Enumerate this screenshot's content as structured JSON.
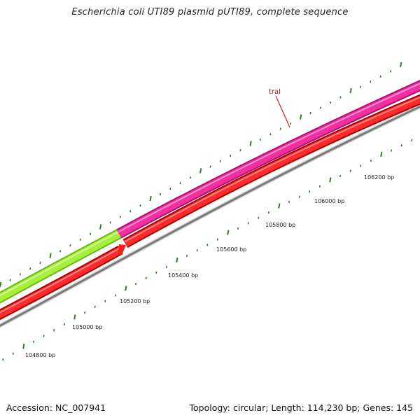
{
  "title": "Escherichia coli UTI89 plasmid pUTI89, complete sequence",
  "footer": {
    "accession": "Accession: NC_007941",
    "summary": "Topology: circular; Length: 114,230 bp; Genes: 145"
  },
  "gene_label": {
    "text": "traI",
    "color": "#cc0000"
  },
  "features": [
    {
      "name": "green-gene",
      "color": "#99ee33",
      "strand": "outer"
    },
    {
      "name": "pink-gene-traI",
      "color": "#ee2a9f",
      "strand": "outer"
    },
    {
      "name": "red-gene-left",
      "color": "#ff1a1a",
      "strand": "inner"
    },
    {
      "name": "red-gene-right",
      "color": "#ff1a1a",
      "strand": "inner"
    }
  ],
  "backbone_color": "#888888",
  "tick_color": "#2f7d2f",
  "position_labels": [
    "104800 bp",
    "105000 bp",
    "105200 bp",
    "105400 bp",
    "105600 bp",
    "105800 bp",
    "106000 bp",
    "106200 bp"
  ]
}
